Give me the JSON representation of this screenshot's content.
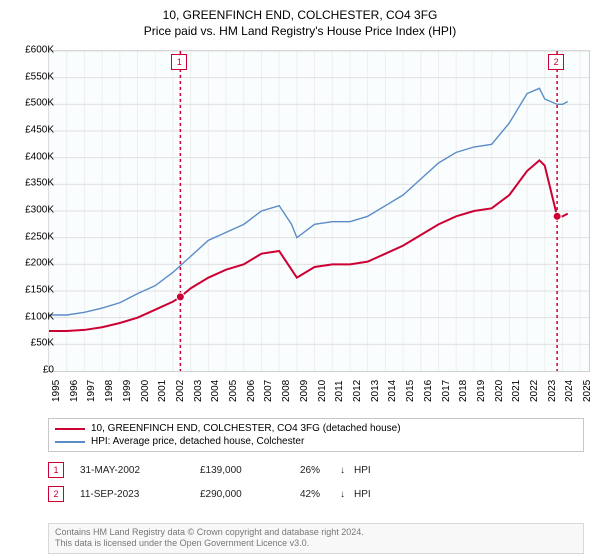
{
  "title": "10, GREENFINCH END, COLCHESTER, CO4 3FG",
  "subtitle": "Price paid vs. HM Land Registry's House Price Index (HPI)",
  "chart": {
    "type": "line",
    "background_color": "#fafdfe",
    "grid_color": "#e0e0e0",
    "border_color": "#d0d0d0",
    "ylim": [
      0,
      600000
    ],
    "ytick_step": 50000,
    "yticklabels": [
      "£0",
      "£50K",
      "£100K",
      "£150K",
      "£200K",
      "£250K",
      "£300K",
      "£350K",
      "£400K",
      "£450K",
      "£500K",
      "£550K",
      "£600K"
    ],
    "xlim": [
      1995,
      2025.5
    ],
    "xticks": [
      1995,
      1996,
      1997,
      1998,
      1999,
      2000,
      2001,
      2002,
      2003,
      2004,
      2005,
      2006,
      2007,
      2008,
      2009,
      2010,
      2011,
      2012,
      2013,
      2014,
      2015,
      2016,
      2017,
      2018,
      2019,
      2020,
      2021,
      2022,
      2023,
      2024,
      2025
    ],
    "series": [
      {
        "name": "red",
        "label": "10, GREENFINCH END, COLCHESTER, CO4 3FG (detached house)",
        "color": "#cc0033",
        "line_width": 2,
        "data": [
          [
            1995,
            75000
          ],
          [
            1996,
            75000
          ],
          [
            1997,
            77000
          ],
          [
            1998,
            82000
          ],
          [
            1999,
            90000
          ],
          [
            2000,
            100000
          ],
          [
            2001,
            115000
          ],
          [
            2002,
            130000
          ],
          [
            2002.42,
            139000
          ],
          [
            2003,
            155000
          ],
          [
            2004,
            175000
          ],
          [
            2005,
            190000
          ],
          [
            2006,
            200000
          ],
          [
            2007,
            220000
          ],
          [
            2008,
            225000
          ],
          [
            2008.7,
            190000
          ],
          [
            2009,
            175000
          ],
          [
            2010,
            195000
          ],
          [
            2011,
            200000
          ],
          [
            2012,
            200000
          ],
          [
            2013,
            205000
          ],
          [
            2014,
            220000
          ],
          [
            2015,
            235000
          ],
          [
            2016,
            255000
          ],
          [
            2017,
            275000
          ],
          [
            2018,
            290000
          ],
          [
            2019,
            300000
          ],
          [
            2020,
            305000
          ],
          [
            2021,
            330000
          ],
          [
            2022,
            375000
          ],
          [
            2022.7,
            395000
          ],
          [
            2023,
            385000
          ],
          [
            2023.7,
            290000
          ],
          [
            2024,
            290000
          ],
          [
            2024.3,
            295000
          ]
        ]
      },
      {
        "name": "blue",
        "label": "HPI: Average price, detached house, Colchester",
        "color": "#5b8cc6",
        "line_width": 1.4,
        "data": [
          [
            1995,
            105000
          ],
          [
            1996,
            105000
          ],
          [
            1997,
            110000
          ],
          [
            1998,
            118000
          ],
          [
            1999,
            128000
          ],
          [
            2000,
            145000
          ],
          [
            2001,
            160000
          ],
          [
            2002,
            185000
          ],
          [
            2003,
            215000
          ],
          [
            2004,
            245000
          ],
          [
            2005,
            260000
          ],
          [
            2006,
            275000
          ],
          [
            2007,
            300000
          ],
          [
            2008,
            310000
          ],
          [
            2008.7,
            275000
          ],
          [
            2009,
            250000
          ],
          [
            2010,
            275000
          ],
          [
            2011,
            280000
          ],
          [
            2012,
            280000
          ],
          [
            2013,
            290000
          ],
          [
            2014,
            310000
          ],
          [
            2015,
            330000
          ],
          [
            2016,
            360000
          ],
          [
            2017,
            390000
          ],
          [
            2018,
            410000
          ],
          [
            2019,
            420000
          ],
          [
            2020,
            425000
          ],
          [
            2021,
            465000
          ],
          [
            2022,
            520000
          ],
          [
            2022.7,
            530000
          ],
          [
            2023,
            510000
          ],
          [
            2023.7,
            500000
          ],
          [
            2024,
            500000
          ],
          [
            2024.3,
            505000
          ]
        ]
      }
    ],
    "markers": [
      {
        "n": "1",
        "x": 2002.42,
        "y": 139000
      },
      {
        "n": "2",
        "x": 2023.7,
        "y": 290000
      }
    ]
  },
  "legend": {
    "rows": [
      {
        "color": "#cc0033",
        "label": "10, GREENFINCH END, COLCHESTER, CO4 3FG (detached house)"
      },
      {
        "color": "#5b8cc6",
        "label": "HPI: Average price, detached house, Colchester"
      }
    ]
  },
  "sales": [
    {
      "n": "1",
      "date": "31-MAY-2002",
      "price": "£139,000",
      "pct": "26%",
      "arrow": "↓",
      "tag": "HPI"
    },
    {
      "n": "2",
      "date": "11-SEP-2023",
      "price": "£290,000",
      "pct": "42%",
      "arrow": "↓",
      "tag": "HPI"
    }
  ],
  "footer": {
    "line1": "Contains HM Land Registry data © Crown copyright and database right 2024.",
    "line2": "This data is licensed under the Open Government Licence v3.0."
  }
}
